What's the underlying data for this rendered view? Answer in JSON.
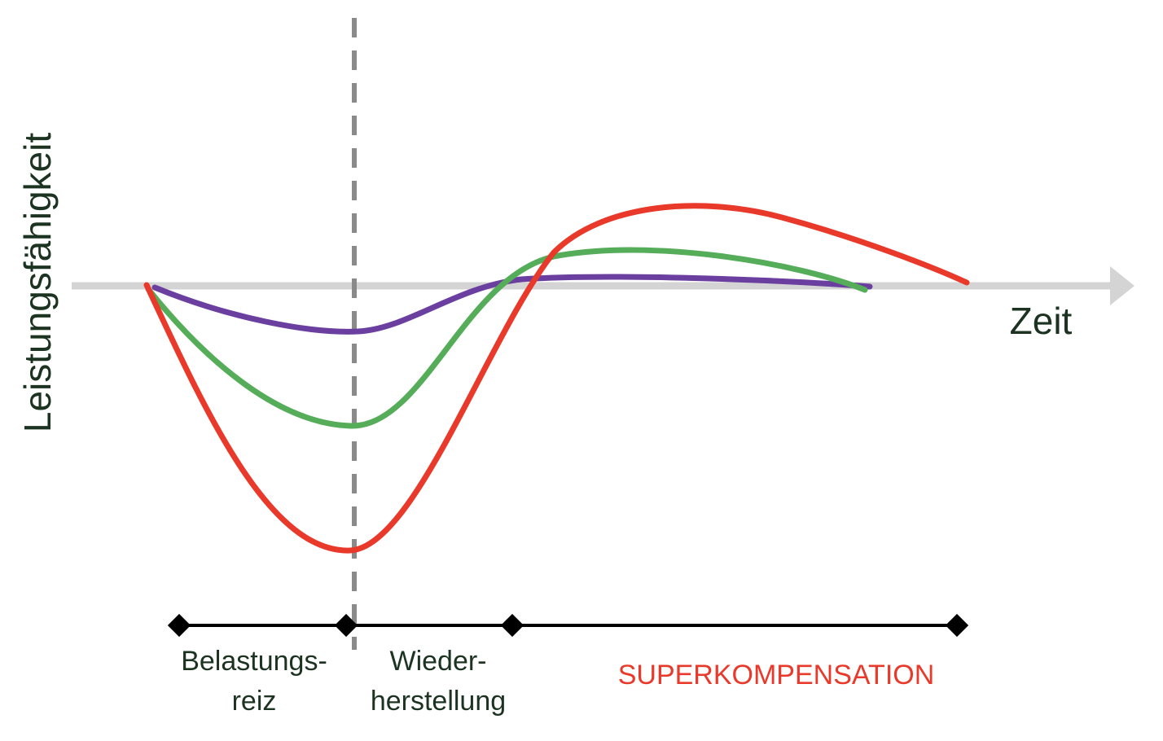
{
  "labels": {
    "y_axis": "Leistungsfähigkeit",
    "x_axis": "Zeit"
  },
  "phases": [
    {
      "lines": [
        "Belastungs-",
        "reiz"
      ]
    },
    {
      "lines": [
        "Wieder-",
        "herstellung"
      ]
    },
    {
      "lines": [
        "SUPERKOMPENSATION"
      ]
    }
  ],
  "colors": {
    "text": "#1b3320",
    "axis": "#d4d4d4",
    "divider": "#8a8a8a",
    "timeline": "#000000",
    "curve_strong": "#e8392a",
    "curve_medium": "#55ad5a",
    "curve_weak": "#6b3fa0",
    "superkompensation": "#e8392a"
  },
  "icons": {
    "axis_arrow": "arrow-right-icon",
    "marker": "diamond-icon"
  }
}
